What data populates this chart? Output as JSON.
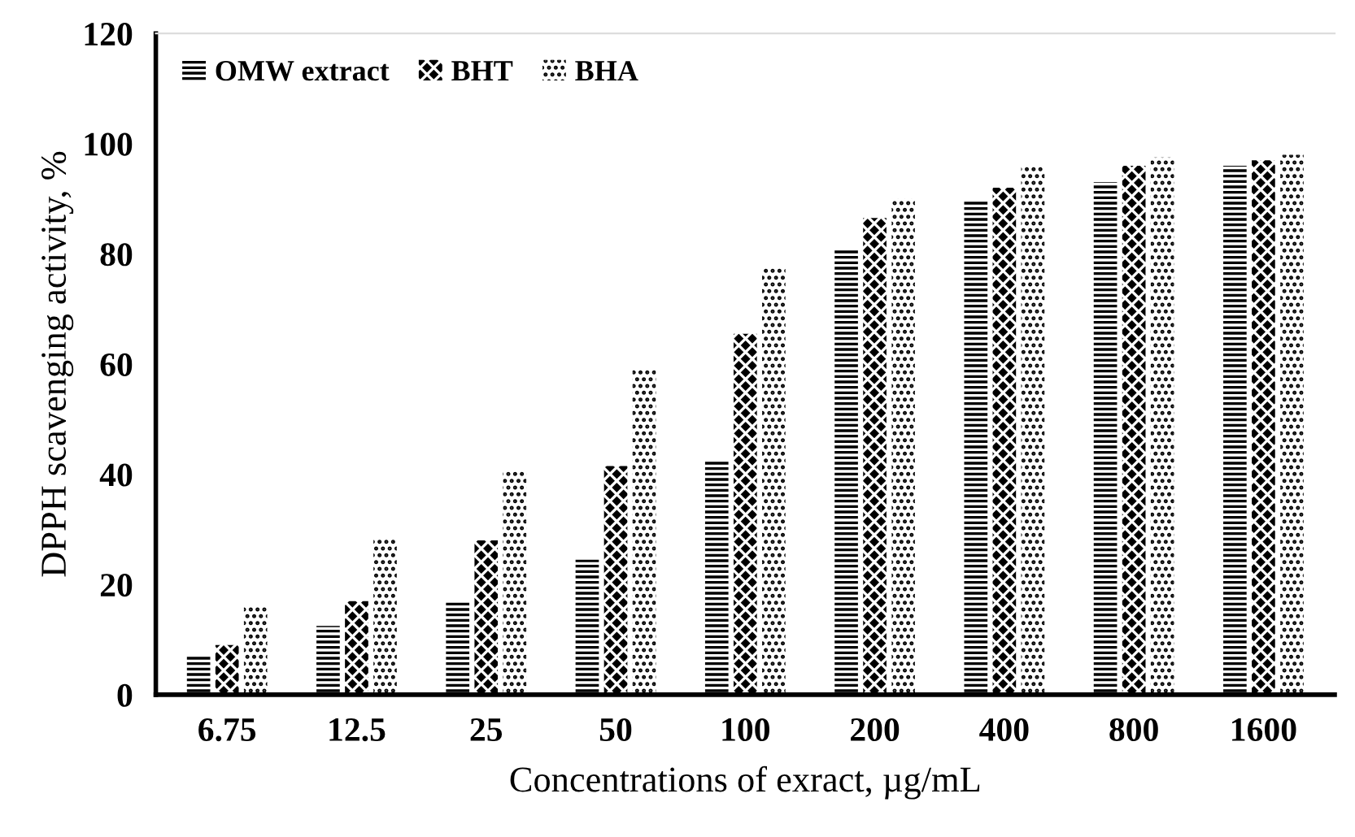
{
  "chart_data": {
    "type": "bar",
    "xlabel": "Concentrations of exract, µg/mL",
    "ylabel": "DPPH scavenging activity, %",
    "categories": [
      "6.75",
      "12.5",
      "25",
      "50",
      "100",
      "200",
      "400",
      "800",
      "1600"
    ],
    "series": [
      {
        "name": "OMW extract",
        "color": "#000000",
        "values": [
          7,
          12.5,
          17,
          24.5,
          42.5,
          81,
          89.5,
          93,
          96
        ]
      },
      {
        "name": "BHT",
        "color": "#000000",
        "values": [
          9,
          17,
          28,
          41.5,
          65.5,
          86.5,
          92,
          96,
          97
        ]
      },
      {
        "name": "BHA",
        "color": "#000000",
        "values": [
          16,
          28.5,
          40.5,
          59,
          77.5,
          90,
          96,
          97.5,
          98
        ]
      }
    ],
    "ylim": [
      0,
      120
    ],
    "yticks": [
      0,
      20,
      40,
      60,
      80,
      100,
      120
    ],
    "grid": false,
    "legend": "top left"
  }
}
